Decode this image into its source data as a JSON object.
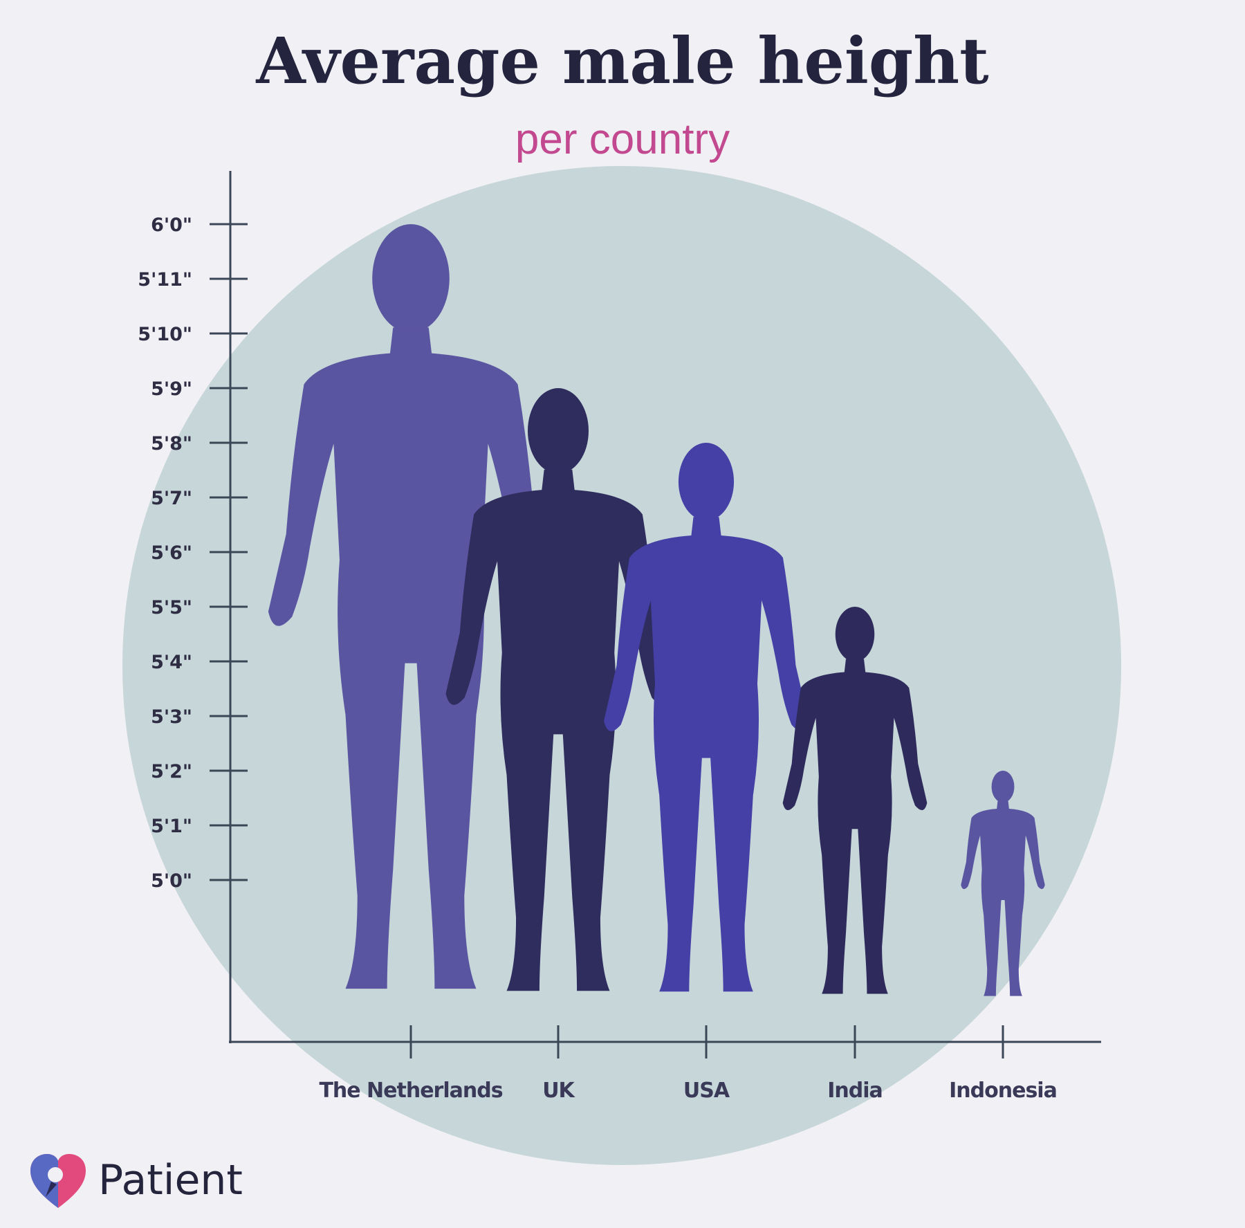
{
  "chart_data": {
    "type": "bar",
    "title": "Average male height",
    "subtitle": "per country",
    "categories": [
      "The Netherlands",
      "UK",
      "USA",
      "India",
      "Indonesia"
    ],
    "values_inches": [
      72,
      69,
      68,
      65,
      62
    ],
    "y_tick_labels": [
      "5'0\"",
      "5'1\"",
      "5'2\"",
      "5'3\"",
      "5'4\"",
      "5'5\"",
      "5'6\"",
      "5'7\"",
      "5'8\"",
      "5'9\"",
      "5'10\"",
      "5'11\"",
      "6'0\""
    ],
    "ylim_inches": [
      60,
      72
    ],
    "grid": false,
    "legend": "none",
    "mark": "human silhouettes",
    "colors": [
      "#5a55a0",
      "#2f2c5e",
      "#4540a6",
      "#2e2b5c",
      "#5a55a0"
    ],
    "background_blob_color": "#c6d6d9"
  },
  "logo": {
    "text": "Patient",
    "icon": "heart-pin-icon"
  }
}
